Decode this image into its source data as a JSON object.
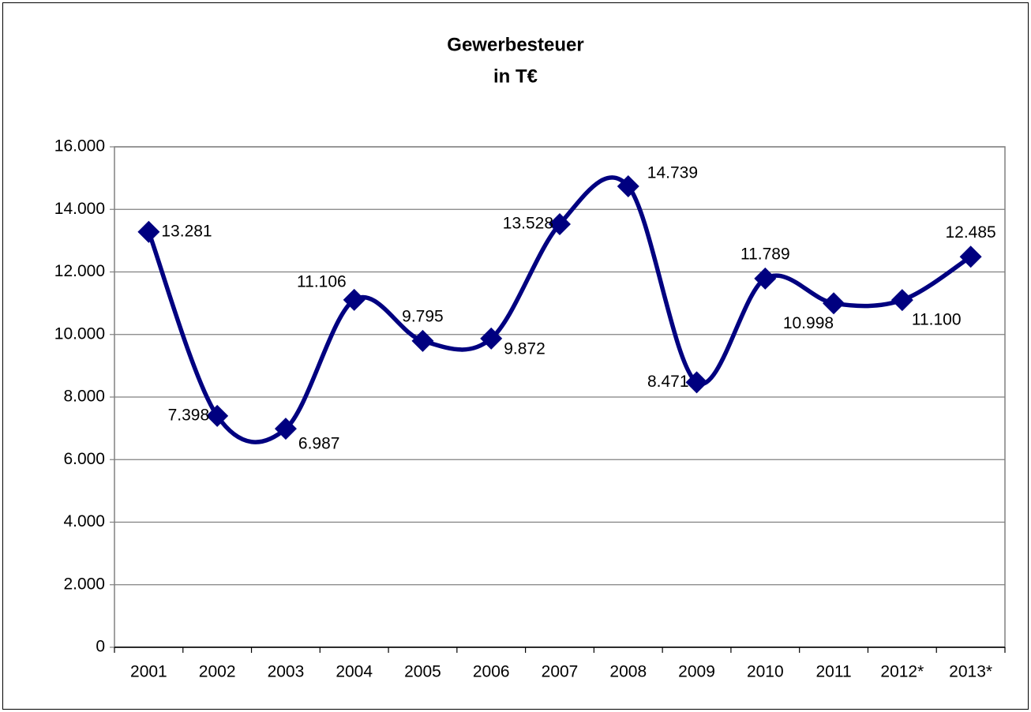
{
  "chart_data": {
    "type": "line",
    "title": "Gewerbesteuer",
    "subtitle": "in T€",
    "categories": [
      "2001",
      "2002",
      "2003",
      "2004",
      "2005",
      "2006",
      "2007",
      "2008",
      "2009",
      "2010",
      "2011",
      "2012*",
      "2013*"
    ],
    "values": [
      13281,
      7398,
      6987,
      11106,
      9795,
      9872,
      13528,
      14739,
      8471,
      11789,
      10998,
      11100,
      12485
    ],
    "value_labels": [
      "13.281",
      "7.398",
      "6.987",
      "11.106",
      "9.795",
      "9.872",
      "13.528",
      "14.739",
      "8.471",
      "11.789",
      "10.998",
      "11.100",
      "12.485"
    ],
    "color": "#000080",
    "smooth": true,
    "marker": "diamond",
    "ylim": [
      0,
      16000
    ],
    "yticks": [
      0,
      {
        "value": 2000,
        "label": "2.000"
      },
      {
        "value": 4000,
        "label": "4.000"
      },
      {
        "value": 6000,
        "label": "6.000"
      },
      {
        "value": 8000,
        "label": "8.000"
      },
      {
        "value": 10000,
        "label": "10.000"
      },
      {
        "value": 12000,
        "label": "12.000"
      },
      {
        "value": 14000,
        "label": "14.000"
      },
      {
        "value": 16000,
        "label": "16.000"
      }
    ],
    "grid": true
  }
}
